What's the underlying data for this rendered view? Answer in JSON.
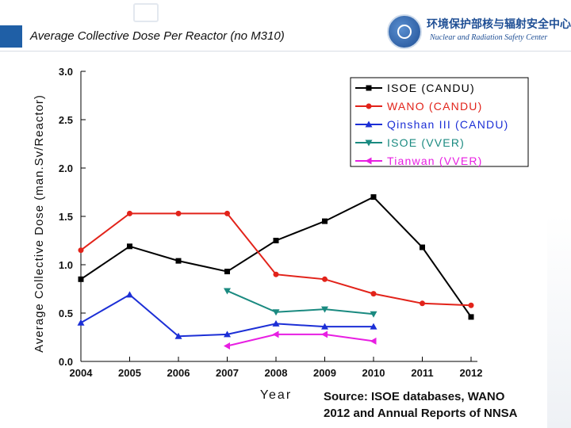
{
  "slide": {
    "title": "Average Collective Dose Per Reactor (no M310)",
    "logo_cn": "环境保护部核与辐射安全中心",
    "logo_en": "Nuclear and Radiation Safety Center",
    "source_line1": "Source: ISOE databases, WANO",
    "source_line2": "2012 and Annual Reports of NNSA"
  },
  "chart_data": {
    "type": "line",
    "title": "",
    "xlabel": "Year",
    "ylabel": "Average Collective Dose (man.Sv/Reactor)",
    "categories": [
      "2004",
      "2005",
      "2006",
      "2007",
      "2008",
      "2009",
      "2010",
      "2011",
      "2012"
    ],
    "ylim": [
      0,
      3.0
    ],
    "yticks": [
      "0.0",
      "0.5",
      "1.0",
      "1.5",
      "2.0",
      "2.5",
      "3.0"
    ],
    "legend_position": "top-right",
    "series": [
      {
        "name": "ISOE (CANDU)",
        "color": "#000000",
        "marker": "square",
        "values": [
          0.85,
          1.19,
          1.04,
          0.93,
          1.25,
          1.45,
          1.7,
          1.18,
          0.46
        ]
      },
      {
        "name": "WANO (CANDU)",
        "color": "#e2231a",
        "marker": "circle",
        "values": [
          1.15,
          1.53,
          1.53,
          1.53,
          0.9,
          0.85,
          0.7,
          0.6,
          0.58
        ]
      },
      {
        "name": "Qinshan III (CANDU)",
        "color": "#1c2fd6",
        "marker": "triangle-up",
        "values": [
          0.4,
          0.69,
          0.26,
          0.28,
          0.39,
          0.36,
          0.36,
          null,
          null
        ]
      },
      {
        "name": "ISOE (VVER)",
        "color": "#1a8a80",
        "marker": "triangle-down",
        "values": [
          null,
          null,
          null,
          0.73,
          0.51,
          0.54,
          0.49,
          null,
          null
        ]
      },
      {
        "name": "Tianwan (VVER)",
        "color": "#e81ee2",
        "marker": "triangle-left",
        "values": [
          null,
          null,
          null,
          0.16,
          0.28,
          0.28,
          0.21,
          null,
          null
        ]
      }
    ]
  }
}
